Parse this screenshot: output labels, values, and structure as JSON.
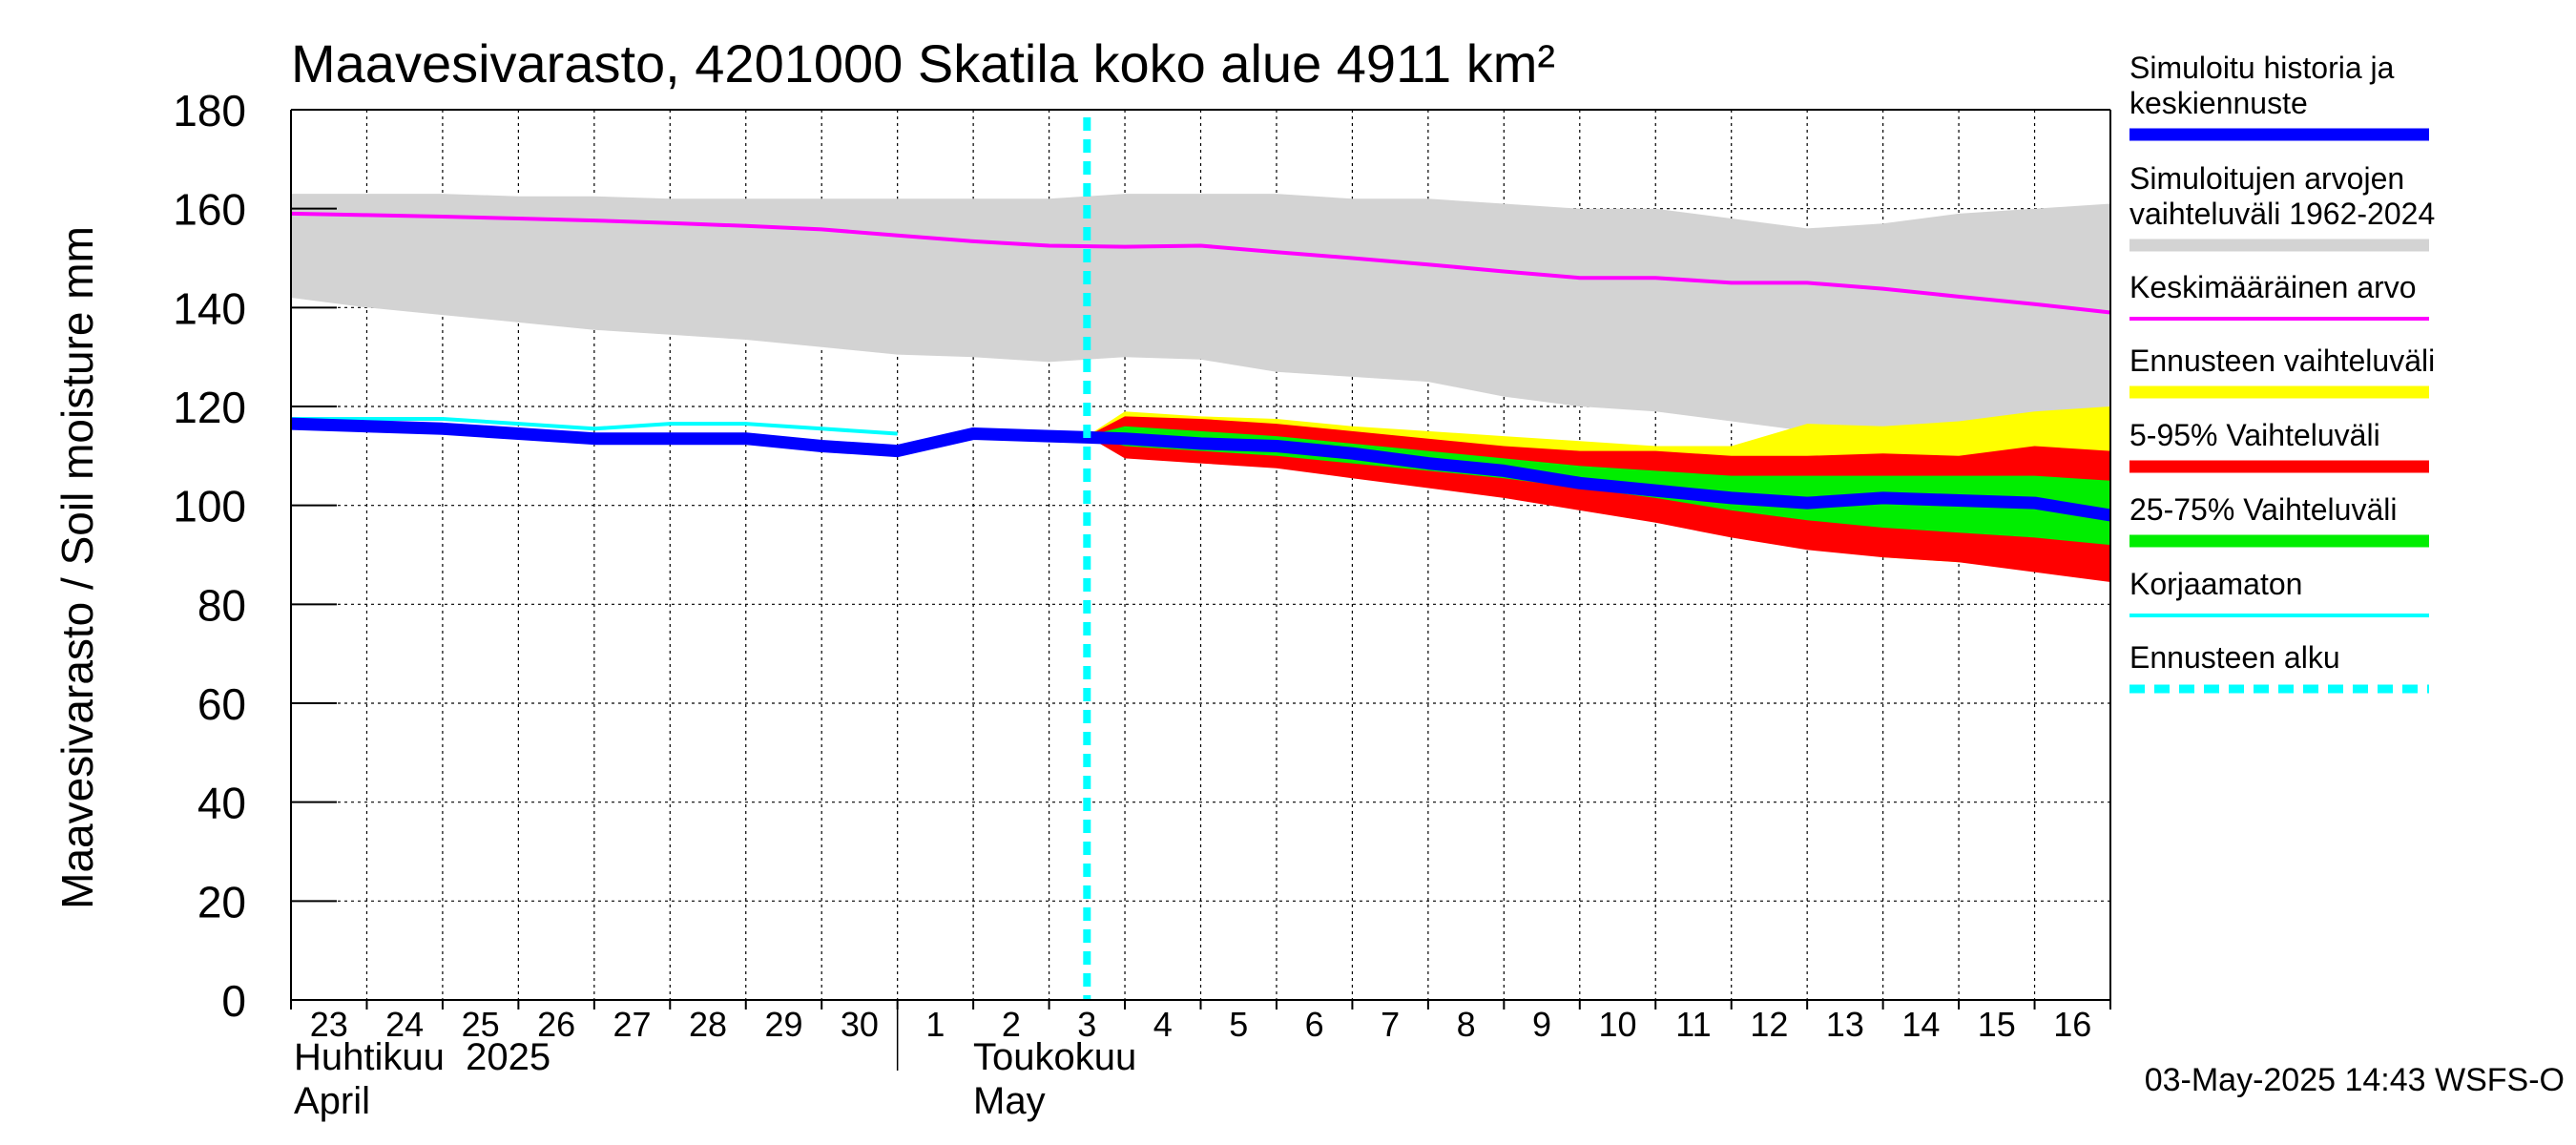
{
  "chart_data": {
    "type": "area",
    "title": "Maavesivarasto, 4201000 Skatila koko alue 4911 km²",
    "ylabel": "Maavesivarasto / Soil moisture   mm",
    "ylim": [
      0,
      180
    ],
    "yticks": [
      0,
      20,
      40,
      60,
      80,
      100,
      120,
      140,
      160,
      180
    ],
    "x_days": [
      "23",
      "24",
      "25",
      "26",
      "27",
      "28",
      "29",
      "30",
      "1",
      "2",
      "3",
      "4",
      "5",
      "6",
      "7",
      "8",
      "9",
      "10",
      "11",
      "12",
      "13",
      "14",
      "15",
      "16"
    ],
    "month_labels": [
      {
        "fi": "Huhtikuu  2025",
        "en": "April",
        "start_day_index": 0
      },
      {
        "fi": "Toukokuu",
        "en": "May",
        "start_day_index": 8.5
      }
    ],
    "forecast_start_day": 10.5,
    "grid": true,
    "series": {
      "range_1962_2024": {
        "name": "Simuloitujen arvojen vaihteluväli 1962-2024",
        "color": "#d3d3d3",
        "x": [
          0,
          1,
          2,
          3,
          4,
          5,
          6,
          7,
          8,
          9,
          10,
          11,
          12,
          13,
          14,
          15,
          16,
          17,
          18,
          19,
          20,
          21,
          22,
          23,
          24
        ],
        "upper": [
          163,
          163,
          163,
          162.5,
          162.5,
          162,
          162,
          162,
          162,
          162,
          162,
          163,
          163,
          163,
          162,
          162,
          161,
          160,
          160,
          158,
          156,
          157,
          159,
          160,
          161
        ],
        "lower": [
          142,
          140,
          138.5,
          137,
          135.5,
          134.5,
          133.5,
          132,
          130.5,
          130,
          129,
          130,
          129.5,
          127,
          126,
          125,
          122,
          120,
          119,
          117,
          115,
          114,
          113,
          112,
          112
        ]
      },
      "mean": {
        "name": "Keskimääräinen arvo",
        "color": "#ff00ff",
        "x": [
          0,
          1,
          2,
          3,
          4,
          5,
          6,
          7,
          8,
          9,
          10,
          11,
          12,
          13,
          14,
          15,
          16,
          17,
          18,
          19,
          20,
          21,
          22,
          23,
          24
        ],
        "values": [
          159,
          158.7,
          158.4,
          158,
          157.6,
          157.1,
          156.5,
          155.8,
          154.6,
          153.4,
          152.5,
          152.3,
          152.5,
          151.2,
          150,
          148.7,
          147.3,
          146,
          146,
          145,
          145,
          143.8,
          142.2,
          140.7,
          139
        ]
      },
      "forecast_total_range": {
        "name": "Ennusteen vaihteluväli",
        "color": "#ffff00",
        "x": [
          10.5,
          11,
          12,
          13,
          14,
          15,
          16,
          17,
          18,
          19,
          20,
          21,
          22,
          23,
          24
        ],
        "upper": [
          114,
          119,
          118,
          117.5,
          116,
          115,
          114,
          113,
          112,
          112,
          116.5,
          116,
          117,
          119,
          120
        ],
        "lower": [
          114,
          110,
          109,
          108,
          106,
          104,
          102,
          99.5,
          97,
          94,
          91.5,
          89.5,
          88.5,
          87.5,
          86
        ]
      },
      "p5_95": {
        "name": "5-95% Vaihteluväli",
        "color": "#ff0000",
        "x": [
          10.5,
          11,
          12,
          13,
          14,
          15,
          16,
          17,
          18,
          19,
          20,
          21,
          22,
          23,
          24
        ],
        "upper": [
          114,
          118,
          117.5,
          116.5,
          115,
          113.5,
          112,
          111,
          111,
          110,
          110,
          110.5,
          110,
          112,
          111
        ],
        "lower": [
          114,
          109.5,
          108.5,
          107.5,
          105.5,
          103.5,
          101.5,
          99,
          96.5,
          93.5,
          91,
          89.5,
          88.5,
          86.5,
          84.5
        ]
      },
      "p25_75": {
        "name": "25-75% Vaihteluväli",
        "color": "#00ee00",
        "x": [
          10.5,
          11,
          12,
          13,
          14,
          15,
          16,
          17,
          18,
          19,
          20,
          21,
          22,
          23,
          24
        ],
        "upper": [
          114,
          116,
          115,
          114,
          112.5,
          111,
          109.5,
          108,
          107,
          106,
          106,
          106,
          106,
          106,
          105
        ],
        "lower": [
          114,
          112,
          111,
          110,
          108.5,
          107,
          105.5,
          103.5,
          101.5,
          99,
          97,
          95.5,
          94.5,
          93.5,
          92
        ]
      },
      "uncorrected": {
        "name": "Korjaamaton",
        "color": "#00ffff",
        "x": [
          0,
          1,
          2,
          3,
          4,
          5,
          6,
          7,
          8
        ],
        "values": [
          117.5,
          117.5,
          117.5,
          116.5,
          115.5,
          116.5,
          116.5,
          115.5,
          114.5
        ]
      },
      "simulated_median": {
        "name": "Simuloitu historia ja keskiennuste",
        "color": "#0000ff",
        "x": [
          0,
          1,
          2,
          3,
          4,
          5,
          6,
          7,
          8,
          9,
          10,
          11,
          12,
          13,
          14,
          15,
          16,
          17,
          18,
          19,
          20,
          21,
          22,
          23,
          24
        ],
        "values": [
          116.5,
          116,
          115.5,
          114.5,
          113.5,
          113.5,
          113.5,
          112,
          111,
          114.5,
          114,
          113.5,
          112.5,
          112,
          110.5,
          108.5,
          107,
          104.5,
          103,
          101.5,
          100.5,
          101.5,
          101,
          100.5,
          98
        ]
      }
    },
    "legend": [
      {
        "label": "Simuloitu historia ja\nkeskiennuste",
        "color": "#0000ff",
        "style": "thick"
      },
      {
        "label": "Simuloitujen arvojen\nvaihteluväli 1962-2024",
        "color": "#d3d3d3",
        "style": "thick"
      },
      {
        "label": "Keskimääräinen arvo",
        "color": "#ff00ff",
        "style": "thin"
      },
      {
        "label": "Ennusteen vaihteluväli",
        "color": "#ffff00",
        "style": "thick"
      },
      {
        "label": "5-95% Vaihteluväli",
        "color": "#ff0000",
        "style": "thick"
      },
      {
        "label": "25-75% Vaihteluväli",
        "color": "#00ee00",
        "style": "thick"
      },
      {
        "label": "Korjaamaton",
        "color": "#00ffff",
        "style": "thin"
      },
      {
        "label": "Ennusteen alku",
        "color": "#00ffff",
        "style": "dashed"
      }
    ],
    "timestamp": "03-May-2025 14:43 WSFS-O"
  }
}
